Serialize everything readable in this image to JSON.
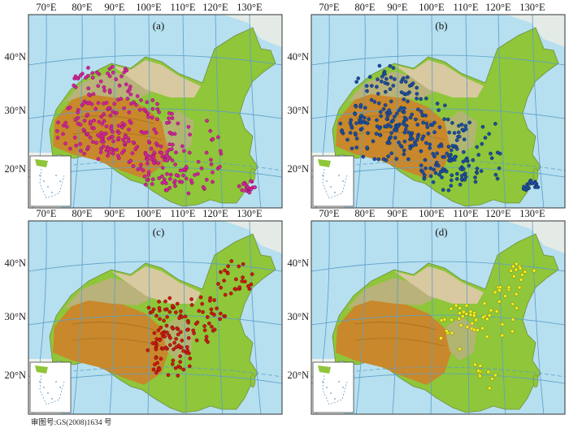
{
  "figure_note": "审图号:GS(2008)1634 号",
  "lon_labels": [
    "70°E",
    "80°E",
    "90°E",
    "100°E",
    "110°E",
    "120°E",
    "130°E"
  ],
  "lat_labels": [
    "40°N",
    "30°N",
    "20°N"
  ],
  "colors": {
    "ocean": "#b6dff0",
    "grid": "#5a9fc8",
    "frame": "#333333",
    "low_plain": "#8fc63a",
    "hill": "#b9b27a",
    "plateau": "#c9882b",
    "desert": "#d8c9a0"
  },
  "panels": [
    {
      "id": "a",
      "label": "(a)",
      "marker_color": "#d3269a",
      "marker_stroke": "#7a0f57",
      "region": "west"
    },
    {
      "id": "b",
      "label": "(b)",
      "marker_color": "#1f4e9c",
      "marker_stroke": "#0d2a5a",
      "region": "west"
    },
    {
      "id": "c",
      "label": "(c)",
      "marker_color": "#cc1a12",
      "marker_stroke": "#6e0a06",
      "region": "central-east"
    },
    {
      "id": "d",
      "label": "(d)",
      "marker_color": "#f2ee22",
      "marker_stroke": "#7a7600",
      "region": "east"
    }
  ]
}
